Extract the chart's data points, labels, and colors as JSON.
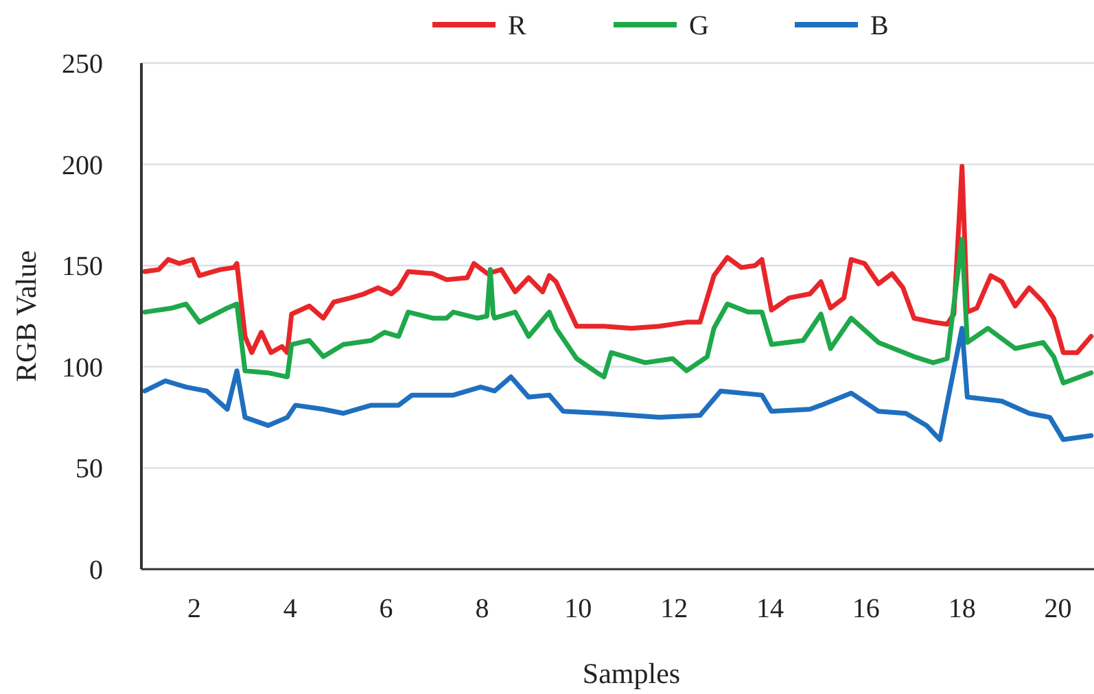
{
  "chart_data": {
    "type": "line",
    "xlabel": "Samples",
    "ylabel": "RGB Value",
    "xlim": [
      0.9,
      20.75
    ],
    "xticks": [
      2,
      4,
      6,
      8,
      10,
      12,
      14,
      16,
      18,
      20
    ],
    "ylim": [
      0,
      250
    ],
    "yticks": [
      0,
      50,
      100,
      150,
      200,
      250
    ],
    "grid": "y",
    "legend": "top",
    "marker": "none",
    "line_style": "solid",
    "series": [
      {
        "name": "R",
        "color": "#e8262a",
        "x": [
          0.97,
          1.26,
          1.46,
          1.69,
          1.97,
          2.11,
          2.54,
          2.83,
          2.89,
          3.06,
          3.2,
          3.4,
          3.6,
          3.83,
          3.94,
          4.03,
          4.4,
          4.69,
          4.91,
          5.26,
          5.54,
          5.83,
          6.11,
          6.26,
          6.46,
          6.97,
          7.26,
          7.69,
          7.83,
          8.11,
          8.4,
          8.69,
          8.97,
          9.26,
          9.4,
          9.54,
          9.97,
          10.54,
          11.11,
          11.69,
          12.26,
          12.54,
          12.83,
          13.11,
          13.4,
          13.69,
          13.83,
          14.03,
          14.4,
          14.83,
          15.06,
          15.26,
          15.54,
          15.69,
          15.97,
          16.26,
          16.54,
          16.77,
          17,
          17.4,
          17.69,
          17.83,
          18,
          18.11,
          18.31,
          18.6,
          18.83,
          19.11,
          19.4,
          19.69,
          19.91,
          20.11,
          20.4,
          20.69
        ],
        "values": [
          147,
          148,
          153,
          151,
          153,
          145,
          148,
          149,
          151,
          115,
          107,
          117,
          107,
          110,
          107,
          126,
          130,
          124,
          132,
          134,
          136,
          139,
          136,
          139,
          147,
          146,
          143,
          144,
          151,
          146,
          148,
          137,
          144,
          137,
          145,
          142,
          120,
          120,
          119,
          120,
          122,
          122,
          145,
          154,
          149,
          150,
          153,
          128,
          134,
          136,
          142,
          129,
          134,
          153,
          151,
          141,
          146,
          139,
          124,
          122,
          121,
          126,
          199,
          127,
          129,
          145,
          142,
          130,
          139,
          132,
          124,
          107,
          107,
          115
        ]
      },
      {
        "name": "G",
        "color": "#1ea84a",
        "x": [
          0.97,
          1.54,
          1.83,
          2.11,
          2.69,
          2.89,
          3.06,
          3.54,
          3.94,
          4.03,
          4.4,
          4.69,
          5.11,
          5.69,
          5.97,
          6.26,
          6.46,
          6.97,
          7.26,
          7.4,
          7.9,
          8.1,
          8.17,
          8.23,
          8.26,
          8.69,
          8.97,
          9.4,
          9.54,
          9.97,
          10.4,
          10.54,
          10.69,
          11.4,
          11.97,
          12.26,
          12.69,
          12.83,
          13.11,
          13.54,
          13.83,
          14.03,
          14.69,
          15.06,
          15.26,
          15.69,
          16.26,
          17,
          17.4,
          17.69,
          18,
          18.11,
          18.54,
          19.11,
          19.69,
          19.91,
          20.11,
          20.69
        ],
        "values": [
          127,
          129,
          131,
          122,
          129,
          131,
          98,
          97,
          95,
          111,
          113,
          105,
          111,
          113,
          117,
          115,
          127,
          124,
          124,
          127,
          124,
          125,
          148,
          126,
          124,
          127,
          115,
          127,
          119,
          104,
          97,
          95,
          107,
          102,
          104,
          98,
          105,
          119,
          131,
          127,
          127,
          111,
          113,
          126,
          109,
          124,
          112,
          105,
          102,
          104,
          163,
          112,
          119,
          109,
          112,
          105,
          92,
          97
        ]
      },
      {
        "name": "B",
        "color": "#1f6fbf",
        "x": [
          0.97,
          1.4,
          1.83,
          2.26,
          2.69,
          2.89,
          3.06,
          3.54,
          3.94,
          4.11,
          4.69,
          5.11,
          5.69,
          6.26,
          6.54,
          7.4,
          7.97,
          8.26,
          8.6,
          8.97,
          9.4,
          9.69,
          10.54,
          11.69,
          12.54,
          12.97,
          13.83,
          14.03,
          14.83,
          15.06,
          15.69,
          16.26,
          16.83,
          17.26,
          17.54,
          18,
          18.11,
          18.83,
          19.4,
          19.83,
          20.11,
          20.69
        ],
        "values": [
          88,
          93,
          90,
          88,
          79,
          98,
          75,
          71,
          75,
          81,
          79,
          77,
          81,
          81,
          86,
          86,
          90,
          88,
          95,
          85,
          86,
          78,
          77,
          75,
          76,
          88,
          86,
          78,
          79,
          81,
          87,
          78,
          77,
          71,
          64,
          119,
          85,
          83,
          77,
          75,
          64,
          66
        ]
      }
    ]
  }
}
